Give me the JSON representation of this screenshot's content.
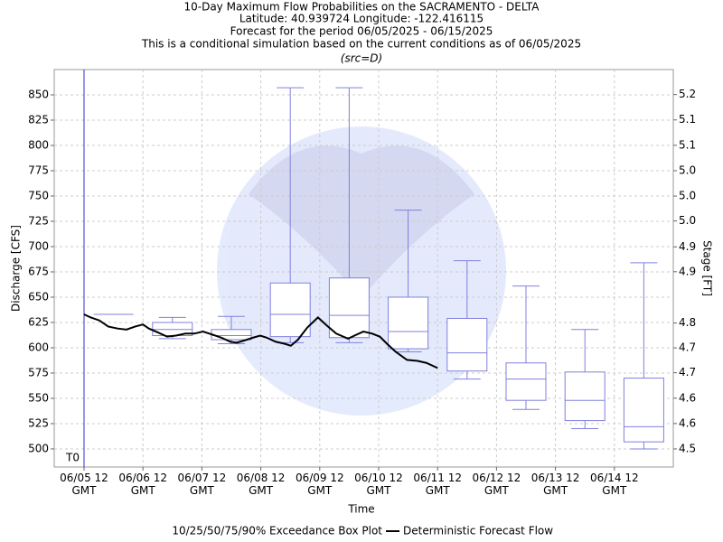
{
  "chart_data": {
    "type": "box",
    "title": "10-Day Maximum Flow Probabilities on the SACRAMENTO - DELTA",
    "subtitle_lines": [
      "Latitude: 40.939724 Longitude: -122.416115",
      "Forecast for the period 06/05/2025 - 06/15/2025",
      "This is a conditional simulation based on the current conditions as of 06/05/2025"
    ],
    "source_note": "(src=D)",
    "x_label": "Time",
    "y_label": "Discharge [CFS]",
    "y2_label": "Stage [FT]",
    "xlim": [
      -0.506,
      10.0
    ],
    "xticks": [
      {
        "value": 0,
        "label": "06/05 12 GMT"
      },
      {
        "value": 1,
        "label": "06/06 12 GMT"
      },
      {
        "value": 2,
        "label": "06/07 12 GMT"
      },
      {
        "value": 3,
        "label": "06/08 12 GMT"
      },
      {
        "value": 4,
        "label": "06/09 12 GMT"
      },
      {
        "value": 5,
        "label": "06/10 12 GMT"
      },
      {
        "value": 6,
        "label": "06/11 12 GMT"
      },
      {
        "value": 7,
        "label": "06/12 12 GMT"
      },
      {
        "value": 8,
        "label": "06/13 12 GMT"
      },
      {
        "value": 9,
        "label": "06/14 12 GMT"
      }
    ],
    "ylim": [
      482.1,
      875
    ],
    "yticks": [
      500,
      525,
      550,
      575,
      600,
      625,
      650,
      675,
      700,
      725,
      750,
      775,
      800,
      825,
      850
    ],
    "y2lim": [
      4.4858,
      5.2372
    ],
    "y2ticks": [
      {
        "value": 4.52,
        "label": "4.5"
      },
      {
        "value": 4.568,
        "label": "4.6"
      },
      {
        "value": 4.616,
        "label": "4.6"
      },
      {
        "value": 4.664,
        "label": "4.7"
      },
      {
        "value": 4.711,
        "label": "4.7"
      },
      {
        "value": 4.758,
        "label": "4.8"
      },
      {
        "value": 4.855,
        "label": "4.9"
      },
      {
        "value": 4.902,
        "label": "4.9"
      },
      {
        "value": 4.951,
        "label": "5.0"
      },
      {
        "value": 4.998,
        "label": "5.0"
      },
      {
        "value": 5.046,
        "label": "5.0"
      },
      {
        "value": 5.094,
        "label": "5.1"
      },
      {
        "value": 5.142,
        "label": "5.1"
      },
      {
        "value": 5.19,
        "label": "5.2"
      }
    ],
    "grid": true,
    "forecast_start": {
      "x": 0,
      "label": "T0",
      "color": "#3333cc"
    },
    "series": [
      {
        "type": "box",
        "name": "10/25/50/75/90% Exceedance Box Plot",
        "color": "#8080dd",
        "x": [
          0.5,
          1.5,
          2.5,
          3.5,
          4.5,
          5.5,
          6.5,
          7.5,
          8.5,
          9.5
        ],
        "whisker_low": [
          633,
          609,
          604,
          605,
          605,
          596,
          569,
          539,
          520,
          500
        ],
        "q25": [
          633,
          612,
          608,
          611,
          610,
          599,
          577,
          548,
          528,
          507
        ],
        "median": [
          633,
          618,
          612,
          633,
          632,
          616,
          595,
          569,
          548,
          522
        ],
        "q75": [
          633,
          625,
          618,
          664,
          669,
          650,
          629,
          585,
          576,
          570
        ],
        "whisker_high": [
          633,
          630,
          631,
          857,
          857,
          736,
          686,
          661,
          618,
          684
        ]
      },
      {
        "type": "line",
        "name": "Deterministic Forecast Flow",
        "color": "#000000",
        "x": [
          0,
          0.11,
          0.26,
          0.41,
          0.57,
          0.72,
          0.87,
          1.0,
          1.1,
          1.26,
          1.41,
          1.56,
          1.72,
          1.87,
          2.02,
          2.18,
          2.33,
          2.48,
          2.59,
          2.71,
          2.87,
          2.99,
          3.1,
          3.25,
          3.4,
          3.51,
          3.63,
          3.79,
          3.97,
          4.12,
          4.28,
          4.48,
          4.59,
          4.74,
          4.89,
          5.02,
          5.14,
          5.29,
          5.48,
          5.66,
          5.81,
          6.0
        ],
        "values": [
          633,
          630,
          627,
          621,
          619,
          618,
          621,
          623,
          619,
          615,
          611,
          612,
          614,
          614,
          616,
          613,
          610,
          606,
          605,
          607,
          610,
          612,
          610,
          606,
          604,
          602,
          608,
          620,
          630,
          622,
          614,
          609,
          612,
          616,
          614,
          611,
          604,
          596,
          588,
          587,
          585,
          580
        ]
      }
    ]
  }
}
